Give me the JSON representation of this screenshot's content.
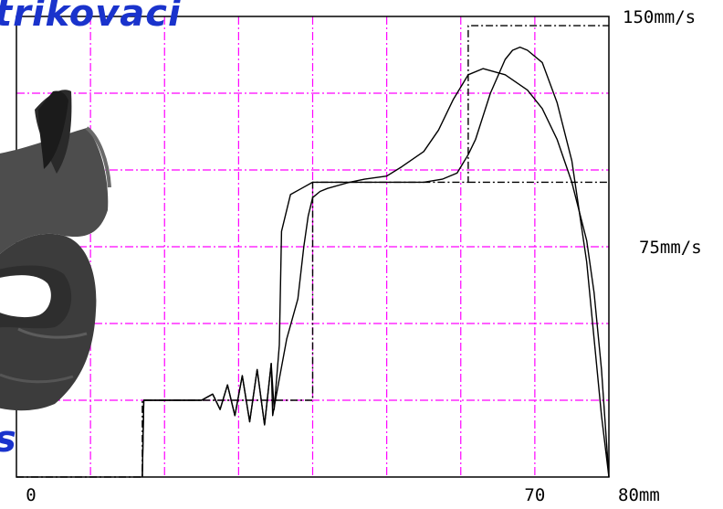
{
  "overlay": {
    "title_fragment": "trikovaci",
    "corner_fragment": "s"
  },
  "colors": {
    "grid": "#ff00ff",
    "axes": "#000000",
    "curves": "#000000",
    "title": "#1a33cc"
  },
  "chart_data": {
    "type": "line",
    "xlim": [
      0,
      80
    ],
    "ylim": [
      0,
      150
    ],
    "x_tick_labels": [
      {
        "value": 0,
        "label": "0"
      },
      {
        "value": 70,
        "label": "70"
      },
      {
        "value": 80,
        "label": "80mm"
      }
    ],
    "y_tick_labels": [
      {
        "value": 150,
        "label": "150mm/s"
      },
      {
        "value": 75,
        "label": "75mm/s"
      }
    ],
    "grid": true,
    "grid_x": [
      10,
      20,
      30,
      40,
      50,
      60,
      70,
      80
    ],
    "grid_y": [
      25,
      50,
      75,
      100,
      125,
      150
    ],
    "series": [
      {
        "style": "dash-dot",
        "x": [
          0,
          17,
          17,
          40,
          40,
          61,
          61,
          80
        ],
        "y": [
          0,
          0,
          25,
          25,
          96,
          96,
          147,
          147
        ]
      },
      {
        "style": "dash-dot",
        "x": [
          61,
          80
        ],
        "y": [
          96,
          96
        ]
      },
      {
        "style": "solid",
        "x": [
          17,
          17.2,
          25,
          26.5,
          27.5,
          28.5,
          29.5,
          30.5,
          31.5,
          32.5,
          33.5,
          34.4,
          34.8,
          35.5,
          35.8,
          37,
          38.5,
          40,
          45,
          55,
          57.5,
          59.5,
          61,
          62,
          64,
          66,
          67,
          68,
          69,
          71,
          73,
          75,
          77,
          78,
          79,
          80
        ],
        "y": [
          0,
          25,
          25,
          27,
          22,
          30,
          20,
          33,
          18,
          35,
          17,
          37,
          22,
          43,
          80,
          92,
          94,
          96,
          96,
          96,
          97,
          99,
          105,
          110,
          125,
          136,
          139,
          140,
          139,
          135,
          122,
          103,
          70,
          45,
          20,
          0
        ]
      },
      {
        "style": "solid",
        "x": [
          17,
          17.2,
          25,
          26.5,
          27.5,
          28.5,
          29.5,
          30.5,
          31.5,
          32.5,
          33.5,
          34.4,
          34.6,
          35.5,
          36.5,
          38,
          38.8,
          39.4,
          40,
          41,
          42,
          45,
          47,
          50,
          52,
          55,
          57,
          59,
          61,
          63,
          66,
          69,
          71,
          73,
          75,
          77,
          78,
          79,
          80
        ],
        "y": [
          0,
          25,
          25,
          27,
          22,
          30,
          20,
          33,
          18,
          35,
          17,
          37,
          20,
          32,
          45,
          58,
          75,
          85,
          91,
          93,
          94,
          96,
          97,
          98,
          101,
          106,
          113,
          123,
          131,
          133,
          131,
          126,
          120,
          110,
          96,
          77,
          60,
          35,
          0
        ]
      }
    ]
  }
}
